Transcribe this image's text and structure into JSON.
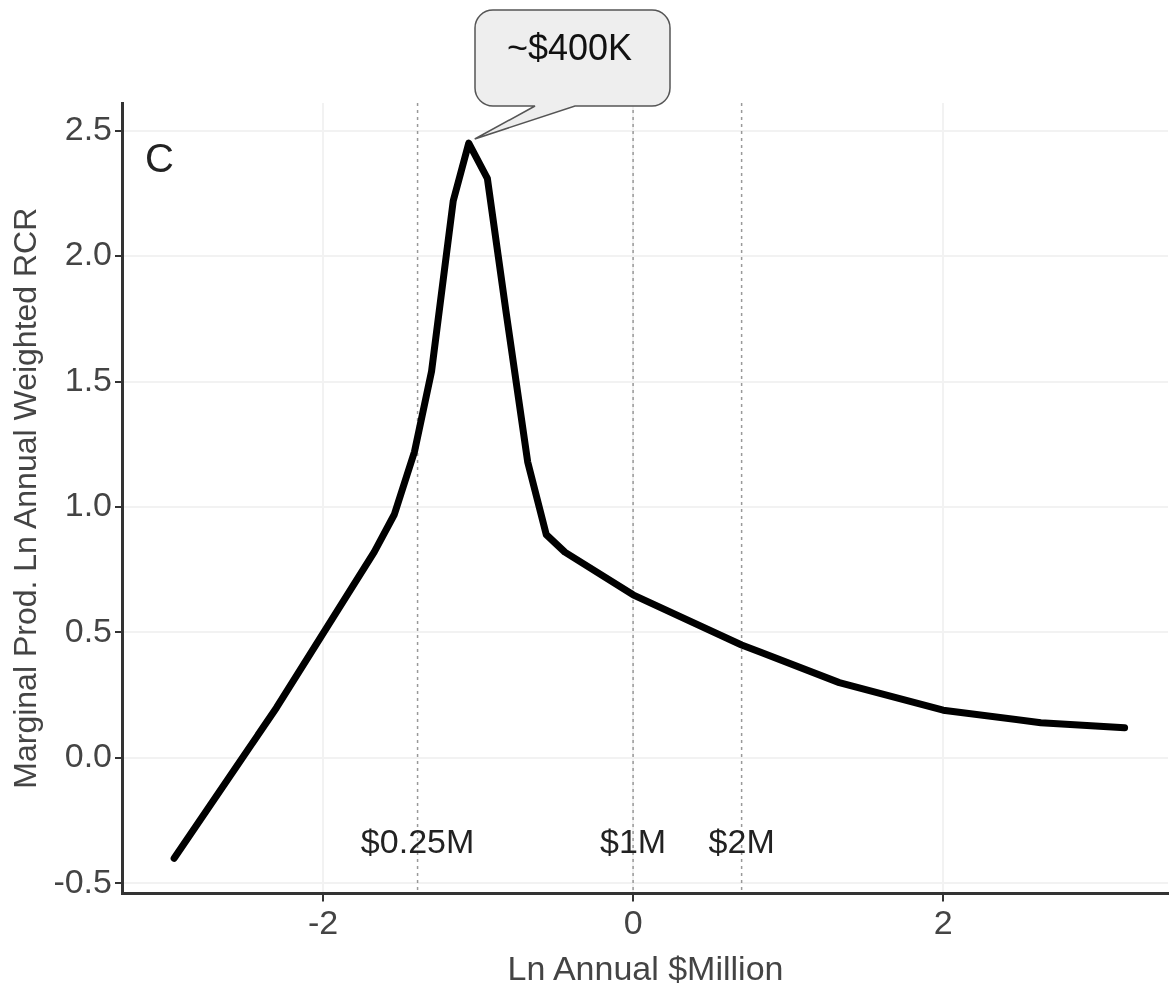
{
  "chart_data": {
    "type": "line",
    "xlabel": "Ln Annual $Million",
    "ylabel": "Marginal Prod. Ln Annual Weighted RCR",
    "x": [
      -2.96,
      -2.3,
      -1.67,
      -1.54,
      -1.41,
      -1.3,
      -1.16,
      -1.06,
      -0.94,
      -0.82,
      -0.68,
      -0.56,
      -0.44,
      0,
      0.7,
      1.33,
      2.0,
      2.63,
      3.17
    ],
    "series": [
      {
        "color": "#000000",
        "values": [
          -0.4,
          0.2,
          0.82,
          0.97,
          1.22,
          1.54,
          2.22,
          2.45,
          2.31,
          1.78,
          1.18,
          0.89,
          0.82,
          0.65,
          0.45,
          0.3,
          0.19,
          0.14,
          0.12
        ]
      }
    ],
    "xlim": [
      -3.29,
      3.45
    ],
    "xticks": [
      -2,
      0,
      2
    ],
    "ylim": [
      -0.54,
      2.61
    ],
    "yticks": [
      -0.5,
      {
        "value": 0,
        "label": "0.0"
      },
      0.5,
      {
        "value": 1,
        "label": "1.0"
      },
      1.5,
      {
        "value": 2,
        "label": "2.0"
      },
      2.5
    ],
    "ref_lines": [
      {
        "axis": "x",
        "value": -1.39,
        "label": "$0.25M",
        "line_style": "dotted",
        "color": "#999999"
      },
      {
        "axis": "x",
        "value": 0,
        "label": "$1M",
        "line_style": "dotted",
        "color": "#999999"
      },
      {
        "axis": "x",
        "value": 0.7,
        "label": "$2M",
        "line_style": "dotted",
        "color": "#999999"
      }
    ],
    "annotations": [
      "C",
      {
        "text": "~$400K",
        "x": -1.06,
        "y": 2.45
      }
    ],
    "grid": true,
    "legend": false,
    "marker": "none",
    "line_style": "solid"
  }
}
